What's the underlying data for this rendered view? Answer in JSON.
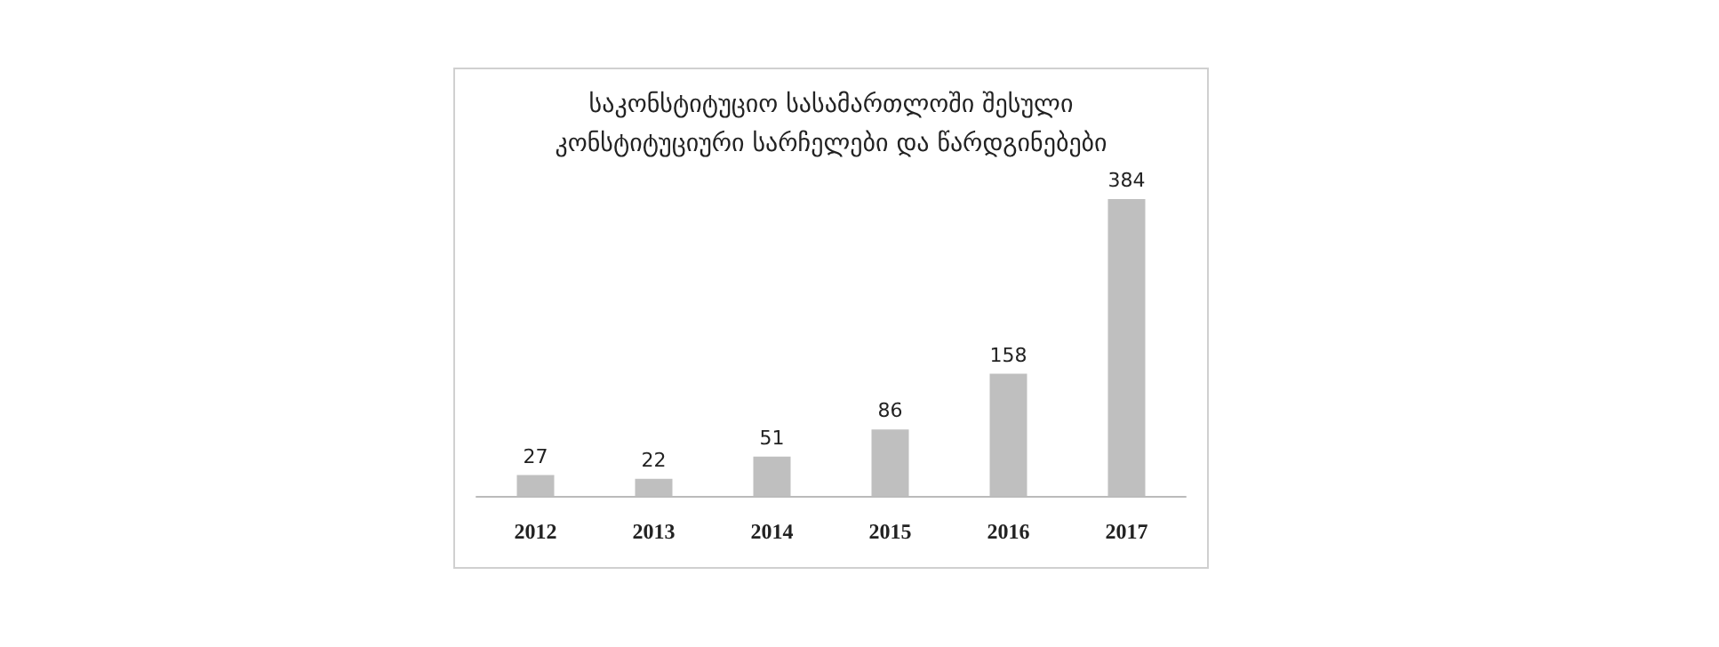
{
  "chart_data": {
    "type": "bar",
    "title": "საკონსტიტუციო სასამართლოში შესული\nკონსტიტუციური სარჩელები და წარდგინებები",
    "categories": [
      "2012",
      "2013",
      "2014",
      "2015",
      "2016",
      "2017"
    ],
    "values": [
      27,
      22,
      51,
      86,
      158,
      384
    ],
    "color": "#bfbfbf",
    "data_labels": true
  }
}
